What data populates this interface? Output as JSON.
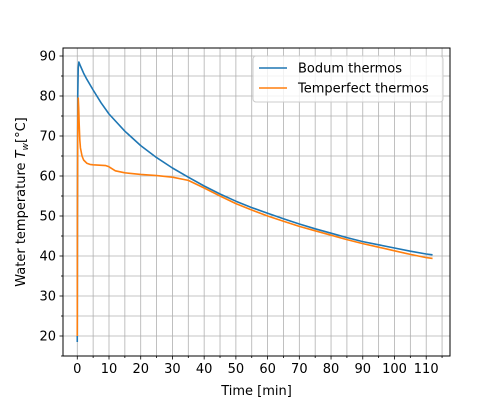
{
  "chart_data": {
    "type": "line",
    "xlabel": "Time [min]",
    "ylabel": "Water temperature",
    "ylabel_symbol": "T",
    "ylabel_subscript": "w",
    "ylabel_unit": "[°C]",
    "xlim": [
      -4.5,
      117.5
    ],
    "ylim": [
      15,
      92
    ],
    "xticks": [
      0,
      10,
      20,
      30,
      40,
      50,
      60,
      70,
      80,
      90,
      100,
      110
    ],
    "yticks": [
      20,
      30,
      40,
      50,
      60,
      70,
      80,
      90
    ],
    "x_minor_step": 5,
    "y_minor_step": 5,
    "grid": true,
    "legend_position": "upper right",
    "series": [
      {
        "name": "Bodum thermos",
        "color": "#1f77b4",
        "x": [
          0,
          0.05,
          0.15,
          0.3,
          0.5,
          1,
          2,
          3,
          5,
          7.5,
          10,
          15,
          20,
          25,
          30,
          35,
          40,
          45,
          50,
          55,
          60,
          65,
          70,
          75,
          80,
          85,
          90,
          95,
          100,
          105,
          110,
          112
        ],
        "y": [
          18.5,
          50,
          80,
          87,
          88.5,
          87.5,
          85.7,
          84.2,
          81.5,
          78.3,
          75.5,
          71.2,
          67.6,
          64.6,
          62,
          59.7,
          57.5,
          55.5,
          53.7,
          52.1,
          50.7,
          49.3,
          48,
          46.8,
          45.7,
          44.6,
          43.6,
          42.8,
          42,
          41.2,
          40.5,
          40.3
        ]
      },
      {
        "name": "Temperfect thermos",
        "color": "#ff7f0e",
        "x": [
          0,
          0.05,
          0.15,
          0.3,
          0.45,
          0.6,
          0.8,
          1,
          1.5,
          2,
          3,
          4,
          5,
          7,
          9,
          10,
          12,
          15,
          20,
          25,
          30,
          35,
          40,
          45,
          50,
          55,
          60,
          65,
          70,
          75,
          80,
          85,
          90,
          95,
          100,
          105,
          110,
          112
        ],
        "y": [
          20,
          50,
          72,
          79.5,
          77,
          73,
          69,
          67,
          65,
          64,
          63.2,
          62.9,
          62.8,
          62.7,
          62.6,
          62.3,
          61.3,
          60.8,
          60.4,
          60.1,
          59.7,
          58.9,
          57,
          55,
          53.1,
          51.5,
          50,
          48.7,
          47.4,
          46.3,
          45.2,
          44.1,
          43.1,
          42.2,
          41.3,
          40.4,
          39.6,
          39.4
        ]
      }
    ]
  }
}
